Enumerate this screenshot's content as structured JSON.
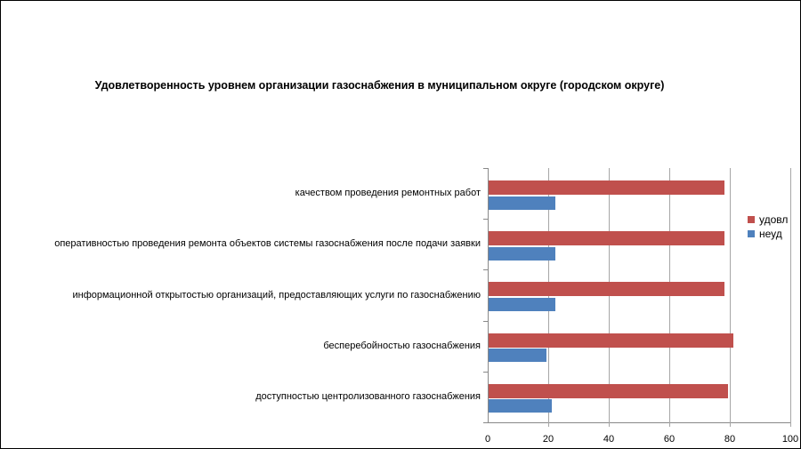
{
  "chart_data": {
    "type": "bar",
    "orientation": "horizontal",
    "title": "Удовлетворенность уровнем организации газоснабжения в муниципальном округе (городском округе)",
    "category_order": "top-to-bottom",
    "categories": [
      "качеством проведения ремонтных работ",
      "оперативностью проведения ремонта объектов системы газоснабжения после подачи заявки",
      "информационной открытостью организаций, предоставляющих услуги по газоснабжению",
      "бесперебойностью газоснабжения",
      "доступностью центролизованного газоснабжения"
    ],
    "series": [
      {
        "name": "удовл",
        "color": "#C0504D",
        "values": [
          78,
          78,
          78,
          81,
          79
        ]
      },
      {
        "name": "неуд",
        "color": "#4F81BD",
        "values": [
          22,
          22,
          22,
          19,
          21
        ]
      }
    ],
    "xlabel": "",
    "ylabel": "",
    "xlim": [
      0,
      100
    ],
    "x_ticks": [
      0,
      20,
      40,
      60,
      80,
      100
    ],
    "gridlines": true,
    "legend_position": "right-inside",
    "colors": {
      "gridline": "#A6A6A6",
      "axis": "#898989",
      "text": "#000000",
      "background": "#FFFFFF",
      "border": "#000000"
    }
  }
}
